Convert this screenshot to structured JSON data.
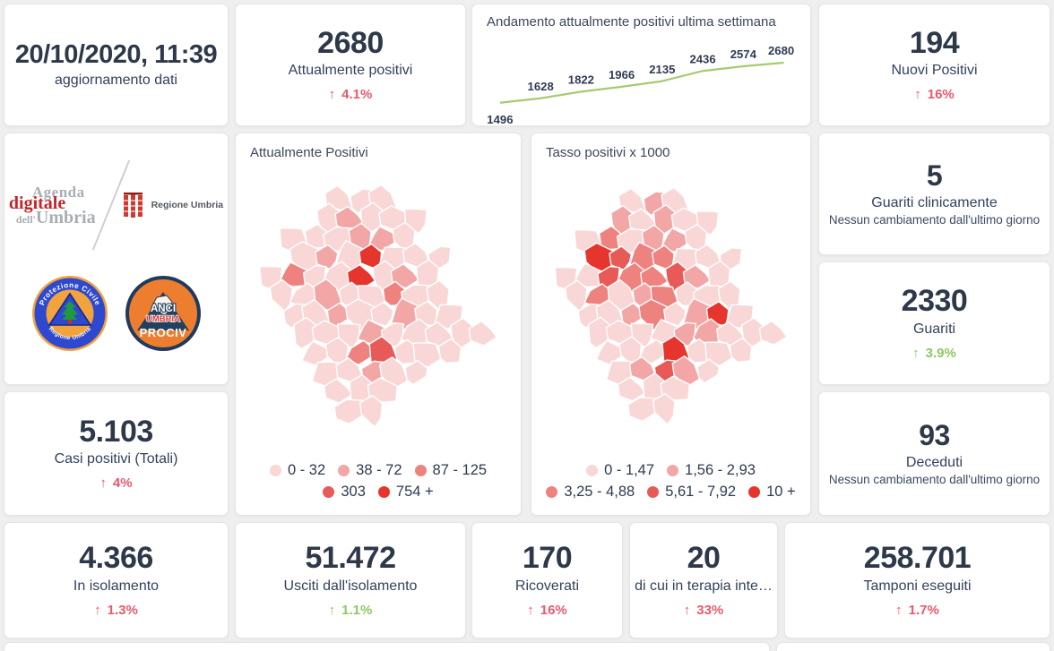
{
  "theme": {
    "page_bg": "#eeefee",
    "card_bg": "#ffffff",
    "value_color": "#2d3849",
    "label_color": "#33415c",
    "red_accent": "#e8596a",
    "green_accent": "#8fc860",
    "trend_line_green": "#a6cb70"
  },
  "kpis": {
    "update": {
      "value": "20/10/2020, 11:39",
      "label": "aggiornamento dati"
    },
    "attualmente": {
      "value": "2680",
      "label": "Attualmente positivi",
      "arrow": "↑",
      "delta": "4.1%",
      "tone": "red"
    },
    "nuovi": {
      "value": "194",
      "label": "Nuovi Positivi",
      "arrow": "↑",
      "delta": "16%",
      "tone": "red"
    },
    "guariti_clinicamente": {
      "value": "5",
      "label": "Guariti clinicamente",
      "note": "Nessun cambiamento dall'ultimo giorno"
    },
    "guariti": {
      "value": "2330",
      "label": "Guariti",
      "arrow": "↑",
      "delta": "3.9%",
      "tone": "green"
    },
    "deceduti": {
      "value": "93",
      "label": "Deceduti",
      "note": "Nessun cambiamento dall'ultimo giorno"
    },
    "casi_totali": {
      "value": "5.103",
      "label": "Casi positivi (Totali)",
      "arrow": "↑",
      "delta": "4%",
      "tone": "red"
    },
    "isolamento": {
      "value": "4.366",
      "label": "In isolamento",
      "arrow": "↑",
      "delta": "1.3%",
      "tone": "red"
    },
    "usciti": {
      "value": "51.472",
      "label": "Usciti dall'isolamento",
      "arrow": "↑",
      "delta": "1.1%",
      "tone": "green"
    },
    "ricoverati": {
      "value": "170",
      "label": "Ricoverati",
      "arrow": "↑",
      "delta": "16%",
      "tone": "red"
    },
    "terapia": {
      "value": "20",
      "label": "di cui in terapia inte…",
      "arrow": "↑",
      "delta": "33%",
      "tone": "red"
    },
    "tamponi": {
      "value": "258.701",
      "label": "Tamponi eseguiti",
      "arrow": "↑",
      "delta": "1.7%",
      "tone": "red"
    }
  },
  "logos": {
    "agenda": {
      "line1": "Agenda",
      "line2": "digitale",
      "line3_small": "dell'",
      "line3": "Umbria"
    },
    "regione": {
      "label": "Regione Umbria"
    },
    "protezione": {
      "top": "Protezione Civile",
      "bottom": "Regione Umbria"
    },
    "anci": {
      "line1": "ANCI",
      "line2": "UMBRIA",
      "line3": "PROCIV"
    }
  },
  "chart_data": [
    {
      "type": "line",
      "title": "Andamento attualmente positivi ultima settimana",
      "x": [
        1,
        2,
        3,
        4,
        5,
        6,
        7,
        8
      ],
      "values": [
        1496,
        1628,
        1822,
        1966,
        2135,
        2436,
        2574,
        2680
      ],
      "line_color": "#a6cb70",
      "label_color": "#2f3b52",
      "axes": "hidden",
      "data_labels": "all"
    },
    {
      "type": "choropleth",
      "region": "Umbria",
      "title": "Attualmente Positivi",
      "legend": [
        {
          "label": "0 - 32",
          "color": "#f8d7d6"
        },
        {
          "label": "38 - 72",
          "color": "#f2a7a6"
        },
        {
          "label": "87 - 125",
          "color": "#ee827e"
        },
        {
          "label": "303",
          "color": "#e85a58"
        },
        {
          "label": "754 +",
          "color": "#e6352c"
        }
      ],
      "legend_rows": [
        3,
        2
      ],
      "mask": [
        [
          3,
          5
        ],
        [
          2,
          6
        ],
        [
          1,
          6
        ],
        [
          1,
          7
        ],
        [
          0,
          7
        ],
        [
          0,
          7
        ],
        [
          1,
          8
        ],
        [
          1,
          9
        ],
        [
          2,
          8
        ],
        [
          2,
          6
        ],
        [
          3,
          5
        ],
        [
          3,
          4
        ]
      ],
      "cells_by_class": {
        "4": [
          [
            4,
            3
          ],
          [
            4,
            4
          ]
        ],
        "3": [
          [
            5,
            8
          ]
        ],
        "2": [
          [
            1,
            4
          ],
          [
            5,
            5
          ],
          [
            4,
            8
          ]
        ],
        "1": [
          [
            3,
            1
          ],
          [
            4,
            2
          ],
          [
            5,
            2
          ],
          [
            2,
            3
          ],
          [
            2,
            5
          ],
          [
            3,
            6
          ],
          [
            6,
            4
          ],
          [
            4,
            7
          ],
          [
            4,
            9
          ],
          [
            6,
            6
          ]
        ]
      }
    },
    {
      "type": "choropleth",
      "region": "Umbria",
      "title": "Tasso positivi x 1000",
      "legend": [
        {
          "label": "0 - 1,47",
          "color": "#f8d7d6"
        },
        {
          "label": "1,56 - 2,93",
          "color": "#f2a7a6"
        },
        {
          "label": "3,25 - 4,88",
          "color": "#ee827e"
        },
        {
          "label": "5,61 - 7,92",
          "color": "#e85a58"
        },
        {
          "label": "10 +",
          "color": "#e6352c"
        }
      ],
      "legend_rows": [
        2,
        3
      ],
      "mask": [
        [
          3,
          5
        ],
        [
          2,
          6
        ],
        [
          1,
          6
        ],
        [
          1,
          7
        ],
        [
          0,
          7
        ],
        [
          0,
          7
        ],
        [
          1,
          8
        ],
        [
          1,
          9
        ],
        [
          2,
          8
        ],
        [
          2,
          6
        ],
        [
          3,
          5
        ],
        [
          3,
          4
        ]
      ],
      "cells_by_class": {
        "4": [
          [
            1,
            3
          ],
          [
            7,
            6
          ],
          [
            5,
            8
          ]
        ],
        "3": [
          [
            2,
            3
          ],
          [
            2,
            4
          ],
          [
            5,
            4
          ],
          [
            4,
            9
          ]
        ],
        "2": [
          [
            2,
            2
          ],
          [
            3,
            3
          ],
          [
            4,
            3
          ],
          [
            3,
            4
          ],
          [
            4,
            4
          ],
          [
            4,
            5
          ],
          [
            4,
            6
          ],
          [
            1,
            5
          ]
        ],
        "1": [
          [
            4,
            0
          ],
          [
            2,
            1
          ],
          [
            4,
            1
          ],
          [
            4,
            2
          ],
          [
            5,
            2
          ],
          [
            3,
            5
          ],
          [
            3,
            6
          ],
          [
            6,
            6
          ],
          [
            5,
            7
          ],
          [
            6,
            7
          ],
          [
            3,
            9
          ],
          [
            5,
            9
          ],
          [
            6,
            4
          ]
        ]
      }
    }
  ]
}
